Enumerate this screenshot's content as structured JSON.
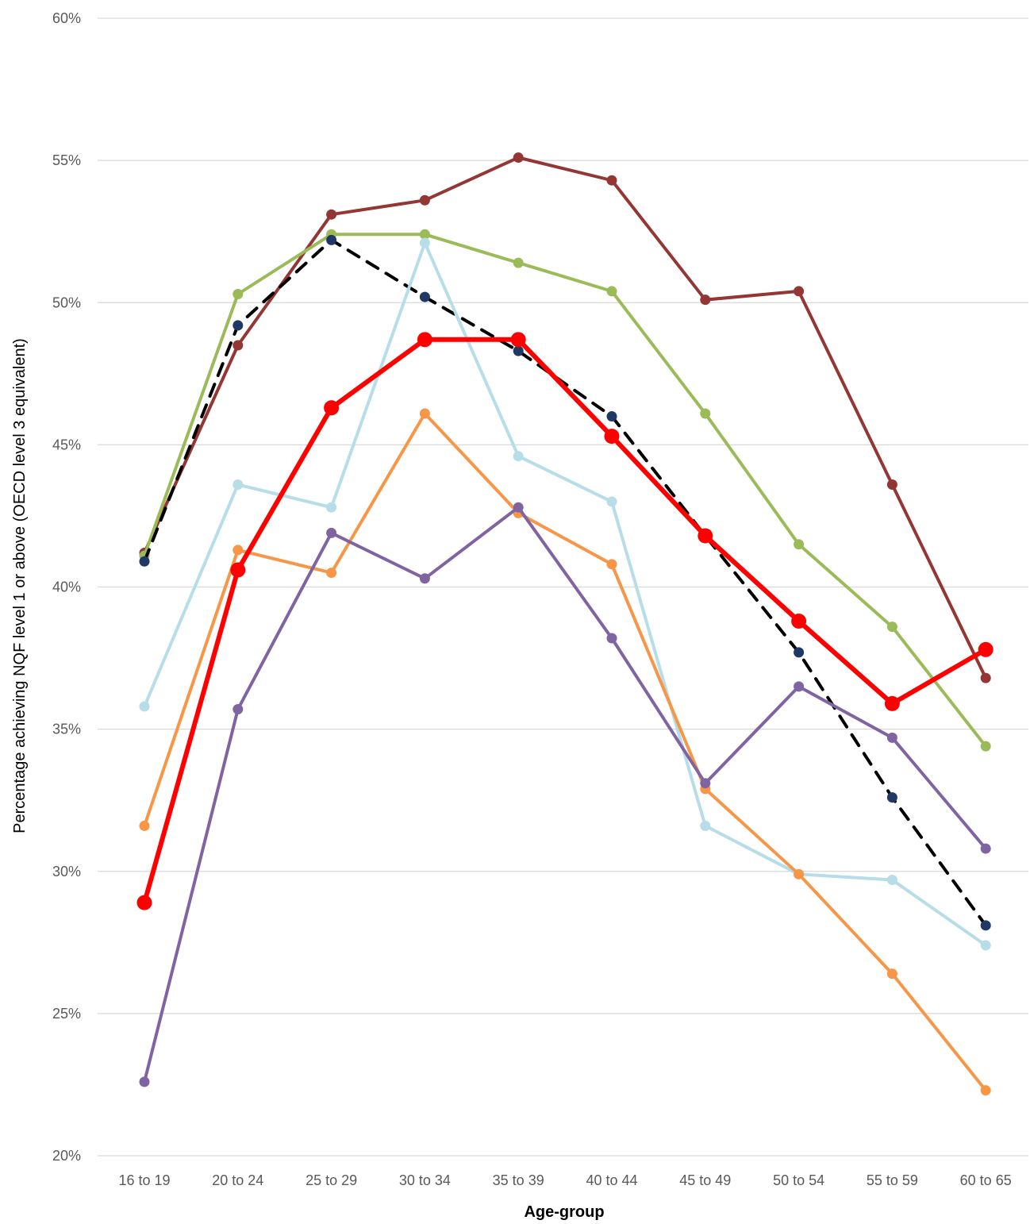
{
  "chart_data": {
    "type": "line",
    "title": "",
    "xlabel": "Age-group",
    "ylabel": "Percentage achieving NQF level 1 or above (OECD level 3 equivalent)",
    "categories": [
      "16 to 19",
      "20 to 24",
      "25 to 29",
      "30 to 34",
      "35 to 39",
      "40 to 44",
      "45 to 49",
      "50 to 54",
      "55 to 59",
      "60 to 65"
    ],
    "ylim": [
      20,
      60
    ],
    "yticks": [
      {
        "value": 20,
        "label": "20%"
      },
      {
        "value": 25,
        "label": "25%"
      },
      {
        "value": 30,
        "label": "30%"
      },
      {
        "value": 35,
        "label": "35%"
      },
      {
        "value": 40,
        "label": "40%"
      },
      {
        "value": 45,
        "label": "45%"
      },
      {
        "value": 50,
        "label": "50%"
      },
      {
        "value": 55,
        "label": "55%"
      },
      {
        "value": 60,
        "label": "60%"
      }
    ],
    "grid": "horizontal",
    "legend": "none",
    "series": [
      {
        "color": "#943634",
        "style": "solid",
        "emphasis": false,
        "values": [
          41.2,
          48.5,
          53.1,
          53.6,
          55.1,
          54.3,
          50.1,
          50.4,
          43.6,
          36.8
        ]
      },
      {
        "color": "#9BBB59",
        "style": "solid",
        "emphasis": false,
        "values": [
          41.1,
          50.3,
          52.4,
          52.4,
          51.4,
          50.4,
          46.1,
          41.5,
          38.6,
          34.4
        ]
      },
      {
        "color": "#1F3864",
        "style": "dashed",
        "emphasis": false,
        "line_color": "#000000",
        "values": [
          40.9,
          49.2,
          52.2,
          50.2,
          48.3,
          46.0,
          41.8,
          37.7,
          32.6,
          28.1
        ]
      },
      {
        "color": "#B7DDE8",
        "style": "solid",
        "emphasis": false,
        "values": [
          35.8,
          43.6,
          42.8,
          52.1,
          44.6,
          43.0,
          31.6,
          29.9,
          29.7,
          27.4
        ]
      },
      {
        "color": "#F79646",
        "style": "solid",
        "emphasis": false,
        "values": [
          31.6,
          41.3,
          40.5,
          46.1,
          42.6,
          40.8,
          32.9,
          29.9,
          26.4,
          22.3
        ]
      },
      {
        "color": "#8064A2",
        "style": "solid",
        "emphasis": false,
        "values": [
          22.6,
          35.7,
          41.9,
          40.3,
          42.8,
          38.2,
          33.1,
          36.5,
          34.7,
          30.8
        ]
      },
      {
        "color": "#FF0000",
        "style": "solid",
        "emphasis": true,
        "values": [
          28.9,
          40.6,
          46.3,
          48.7,
          48.7,
          45.3,
          41.8,
          38.8,
          35.9,
          37.8
        ]
      }
    ]
  }
}
